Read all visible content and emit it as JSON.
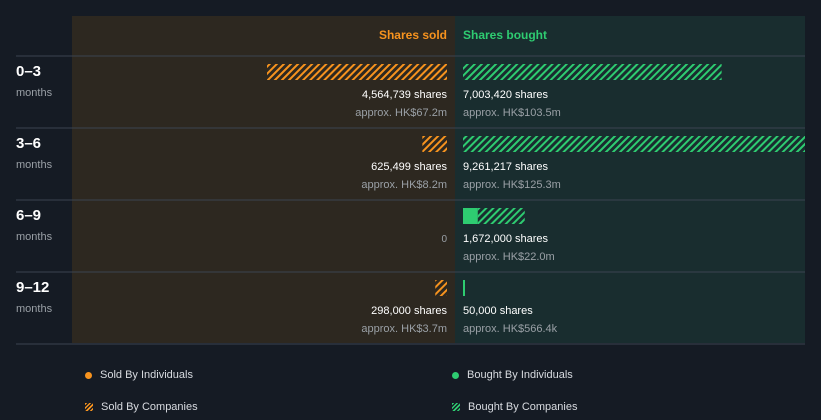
{
  "colors": {
    "page_bg": "#151b24",
    "sold_panel": "#2d2820",
    "bought_panel": "#192d2f",
    "sold": "#f7931e",
    "bought": "#2ecc71",
    "divider": "#3a4350",
    "muted_text": "#9aa0a6"
  },
  "chart_data": {
    "type": "bar",
    "sold_header": "Shares sold",
    "bought_header": "Shares bought",
    "categories": [
      {
        "label": "0–3",
        "sub": "months"
      },
      {
        "label": "3–6",
        "sub": "months"
      },
      {
        "label": "6–9",
        "sub": "months"
      },
      {
        "label": "9–12",
        "sub": "months"
      }
    ],
    "max_shares": 9261217,
    "series": [
      {
        "name": "Sold By Individuals",
        "side": "sold",
        "style": "solid",
        "values": [
          0,
          0,
          0,
          0
        ]
      },
      {
        "name": "Sold By Companies",
        "side": "sold",
        "style": "hatched",
        "values": [
          4564739,
          625499,
          0,
          298000
        ]
      },
      {
        "name": "Bought By Individuals",
        "side": "bought",
        "style": "solid",
        "values": [
          0,
          0,
          400000,
          50000
        ]
      },
      {
        "name": "Bought By Companies",
        "side": "bought",
        "style": "hatched",
        "values": [
          7003420,
          9261217,
          1272000,
          0
        ]
      }
    ],
    "sold_labels": [
      {
        "shares": "4,564,739 shares",
        "value": "approx. HK$67.2m"
      },
      {
        "shares": "625,499 shares",
        "value": "approx. HK$8.2m"
      },
      {
        "zero": "0"
      },
      {
        "shares": "298,000 shares",
        "value": "approx. HK$3.7m"
      }
    ],
    "bought_labels": [
      {
        "shares": "7,003,420 shares",
        "value": "approx. HK$103.5m"
      },
      {
        "shares": "9,261,217 shares",
        "value": "approx. HK$125.3m"
      },
      {
        "shares": "1,672,000 shares",
        "value": "approx. HK$22.0m"
      },
      {
        "shares": "50,000 shares",
        "value": "approx. HK$566.4k"
      }
    ]
  },
  "legend": {
    "sold_individuals": "Sold By Individuals",
    "bought_individuals": "Bought By Individuals",
    "sold_companies": "Sold By Companies",
    "bought_companies": "Bought By Companies"
  }
}
